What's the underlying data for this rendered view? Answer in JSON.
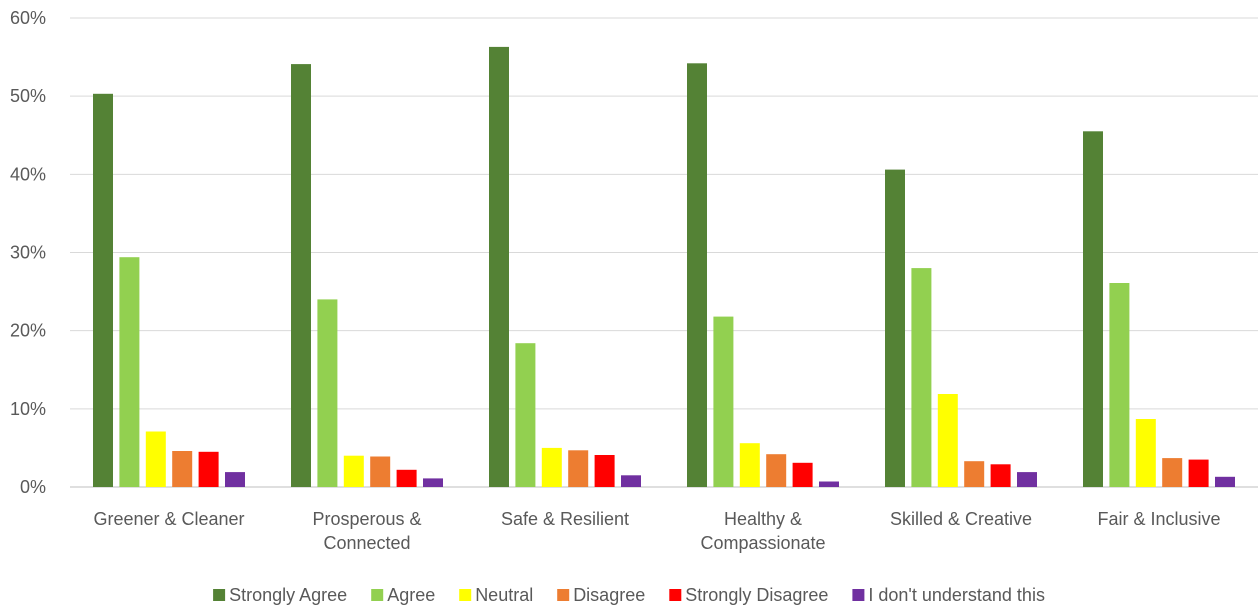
{
  "chart_data": {
    "type": "bar",
    "categories": [
      "Greener & Cleaner",
      "Prosperous & Connected",
      "Safe & Resilient",
      "Healthy & Compassionate",
      "Skilled & Creative",
      "Fair & Inclusive"
    ],
    "category_lines": [
      [
        "Greener & Cleaner"
      ],
      [
        "Prosperous &",
        "Connected"
      ],
      [
        "Safe & Resilient"
      ],
      [
        "Healthy &",
        "Compassionate"
      ],
      [
        "Skilled & Creative"
      ],
      [
        "Fair & Inclusive"
      ]
    ],
    "series": [
      {
        "name": "Strongly Agree",
        "color": "#548235",
        "values": [
          50.3,
          54.1,
          56.3,
          54.2,
          40.6,
          45.5
        ]
      },
      {
        "name": "Agree",
        "color": "#92d050",
        "values": [
          29.4,
          24.0,
          18.4,
          21.8,
          28.0,
          26.1
        ]
      },
      {
        "name": "Neutral",
        "color": "#ffff00",
        "values": [
          7.1,
          4.0,
          5.0,
          5.6,
          11.9,
          8.7
        ]
      },
      {
        "name": "Disagree",
        "color": "#ed7d31",
        "values": [
          4.6,
          3.9,
          4.7,
          4.2,
          3.3,
          3.7
        ]
      },
      {
        "name": "Strongly Disagree",
        "color": "#ff0000",
        "values": [
          4.5,
          2.2,
          4.1,
          3.1,
          2.9,
          3.5
        ]
      },
      {
        "name": "I don't understand this",
        "color": "#7030a0",
        "values": [
          1.9,
          1.1,
          1.5,
          0.7,
          1.9,
          1.3
        ]
      }
    ],
    "yticks": [
      "0%",
      "10%",
      "20%",
      "30%",
      "40%",
      "50%",
      "60%"
    ],
    "ylim": [
      0,
      60
    ],
    "grid": true,
    "legend_position": "bottom",
    "title": "",
    "xlabel": "",
    "ylabel": ""
  }
}
